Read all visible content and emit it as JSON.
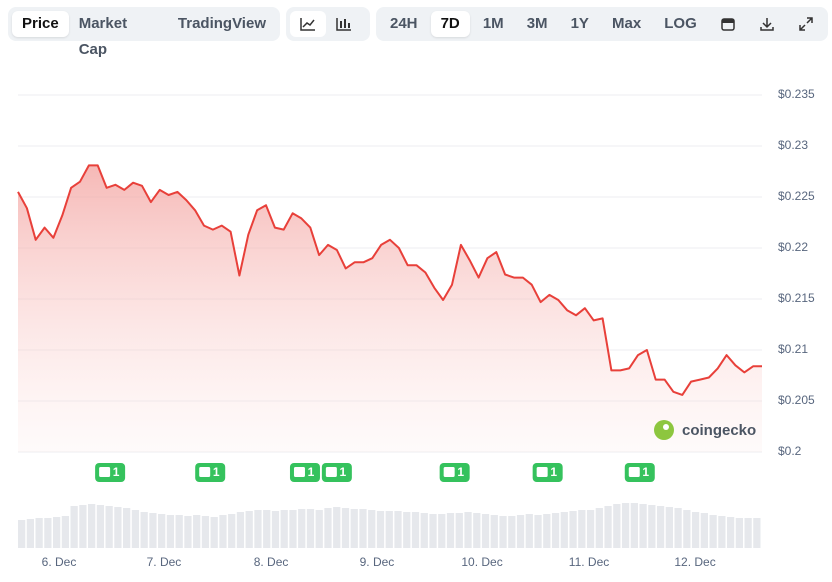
{
  "toolbar": {
    "views": [
      "Price",
      "Market Cap",
      "TradingView"
    ],
    "ranges": [
      "24H",
      "7D",
      "1M",
      "3M",
      "1Y",
      "Max",
      "LOG"
    ],
    "selected_view": "Price",
    "selected_range": "7D"
  },
  "chart_data": {
    "type": "area",
    "watermark": "coingecko",
    "color": "#e8403a",
    "values": [
      0.2255,
      0.2239,
      0.2208,
      0.222,
      0.221,
      0.2232,
      0.2259,
      0.2265,
      0.2281,
      0.2281,
      0.2259,
      0.2262,
      0.2257,
      0.2264,
      0.2261,
      0.2245,
      0.2257,
      0.2252,
      0.2255,
      0.2247,
      0.2237,
      0.2222,
      0.2218,
      0.2222,
      0.2216,
      0.2173,
      0.2213,
      0.2237,
      0.2242,
      0.222,
      0.2218,
      0.2234,
      0.2229,
      0.222,
      0.2193,
      0.2203,
      0.2198,
      0.218,
      0.2186,
      0.2186,
      0.219,
      0.2203,
      0.2208,
      0.22,
      0.2183,
      0.2183,
      0.2176,
      0.2161,
      0.2149,
      0.2164,
      0.2203,
      0.2188,
      0.2171,
      0.219,
      0.2196,
      0.2174,
      0.2171,
      0.2171,
      0.2164,
      0.2147,
      0.2154,
      0.2149,
      0.2139,
      0.2134,
      0.2141,
      0.2129,
      0.2131,
      0.208,
      0.208,
      0.2082,
      0.2095,
      0.21,
      0.2071,
      0.2071,
      0.2059,
      0.2056,
      0.2069,
      0.2071,
      0.2073,
      0.2082,
      0.2095,
      0.2085,
      0.2078,
      0.2084,
      0.2084
    ],
    "volume": [
      28,
      29,
      30,
      30,
      31,
      32,
      42,
      43,
      44,
      43,
      42,
      41,
      40,
      38,
      36,
      35,
      34,
      33,
      33,
      32,
      33,
      32,
      31,
      33,
      34,
      36,
      37,
      38,
      38,
      37,
      38,
      38,
      39,
      39,
      38,
      40,
      41,
      40,
      39,
      39,
      38,
      37,
      37,
      37,
      36,
      36,
      35,
      34,
      34,
      35,
      35,
      36,
      35,
      34,
      33,
      32,
      32,
      33,
      34,
      33,
      34,
      35,
      36,
      37,
      38,
      38,
      40,
      42,
      44,
      45,
      45,
      44,
      43,
      42,
      41,
      40,
      38,
      36,
      35,
      33,
      32,
      31,
      30,
      30,
      30
    ],
    "events": [
      {
        "x": 10.4,
        "label": "1"
      },
      {
        "x": 21.7,
        "label": "1"
      },
      {
        "x": 32.4,
        "label": "1"
      },
      {
        "x": 36,
        "label": "1"
      },
      {
        "x": 49.3,
        "label": "1"
      },
      {
        "x": 59.8,
        "label": "1"
      },
      {
        "x": 70.2,
        "label": "1"
      }
    ],
    "xlim": [
      0,
      84
    ],
    "xticks": [
      {
        "value": 4.63,
        "label": "6. Dec"
      },
      {
        "value": 16.48,
        "label": "7. Dec"
      },
      {
        "value": 28.57,
        "label": "8. Dec"
      },
      {
        "value": 40.53,
        "label": "9. Dec"
      },
      {
        "value": 52.39,
        "label": "10. Dec"
      },
      {
        "value": 64.47,
        "label": "11. Dec"
      },
      {
        "value": 76.44,
        "label": "12. Dec"
      }
    ],
    "ylim": [
      0.2,
      0.235
    ],
    "yticks": [
      {
        "value": 0.2,
        "label": "$0.2"
      },
      {
        "value": 0.205,
        "label": "$0.205"
      },
      {
        "value": 0.21,
        "label": "$0.21"
      },
      {
        "value": 0.215,
        "label": "$0.215"
      },
      {
        "value": 0.22,
        "label": "$0.22"
      },
      {
        "value": 0.225,
        "label": "$0.225"
      },
      {
        "value": 0.23,
        "label": "$0.23"
      },
      {
        "value": 0.235,
        "label": "$0.235"
      }
    ],
    "grid": true
  }
}
